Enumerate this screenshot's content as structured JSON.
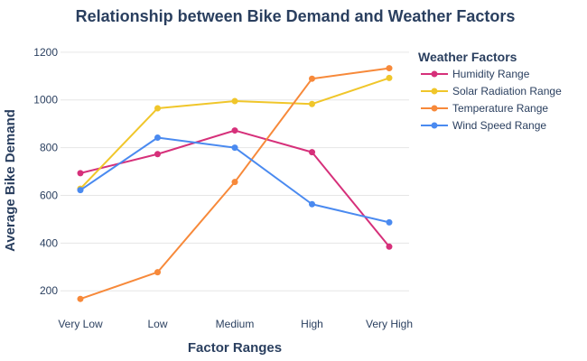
{
  "chart_data": {
    "type": "line",
    "title": "Relationship between Bike Demand and Weather Factors",
    "xlabel": "Factor Ranges",
    "ylabel": "Average Bike Demand",
    "categories": [
      "Very Low",
      "Low",
      "Medium",
      "High",
      "Very High"
    ],
    "yticks": [
      200,
      400,
      600,
      800,
      1000,
      1200
    ],
    "ylim": [
      110,
      1260
    ],
    "grid": true,
    "legend_title": "Weather Factors",
    "legend_position": "right",
    "series": [
      {
        "name": "Humidity Range",
        "color": "#d6307a",
        "values": [
          693,
          773,
          872,
          781,
          385
        ]
      },
      {
        "name": "Solar Radiation Range",
        "color": "#f0c62a",
        "values": [
          628,
          965,
          995,
          983,
          1092
        ]
      },
      {
        "name": "Temperature Range",
        "color": "#f7893a",
        "values": [
          166,
          278,
          656,
          1089,
          1133
        ]
      },
      {
        "name": "Wind Speed Range",
        "color": "#4a8af0",
        "values": [
          622,
          842,
          800,
          563,
          487
        ]
      }
    ]
  }
}
